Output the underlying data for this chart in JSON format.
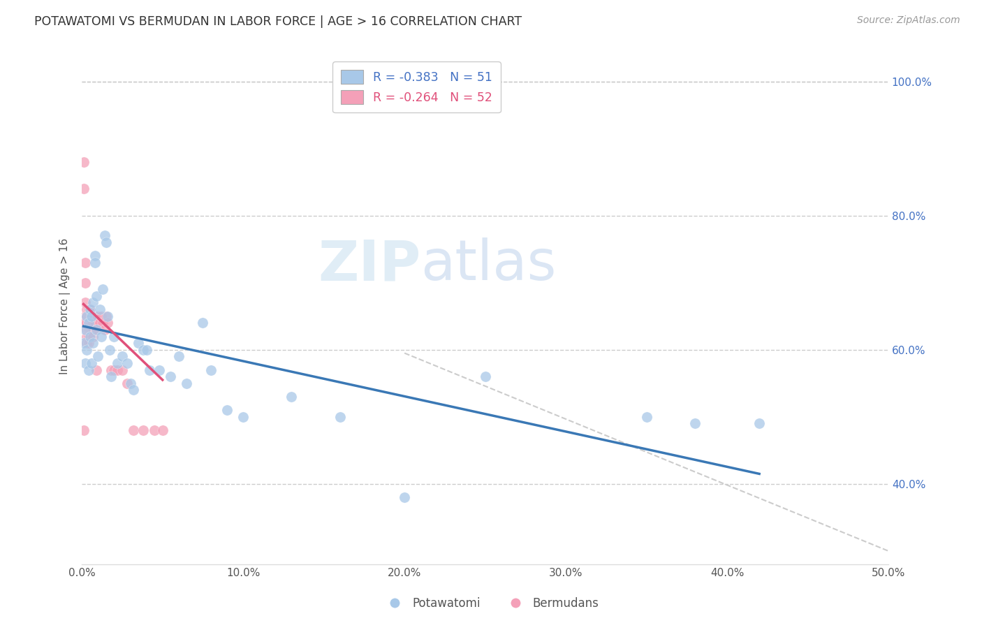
{
  "title": "POTAWATOMI VS BERMUDAN IN LABOR FORCE | AGE > 16 CORRELATION CHART",
  "source": "Source: ZipAtlas.com",
  "ylabel": "In Labor Force | Age > 16",
  "xlim": [
    0.0,
    0.5
  ],
  "ylim": [
    0.28,
    1.05
  ],
  "xtick_labels": [
    "0.0%",
    "10.0%",
    "20.0%",
    "30.0%",
    "40.0%",
    "50.0%"
  ],
  "xtick_vals": [
    0.0,
    0.1,
    0.2,
    0.3,
    0.4,
    0.5
  ],
  "ytick_labels": [
    "40.0%",
    "60.0%",
    "80.0%",
    "100.0%"
  ],
  "ytick_vals": [
    0.4,
    0.6,
    0.8,
    1.0
  ],
  "watermark": "ZIPatlas",
  "legend_blue_label": "R = -0.383   N = 51",
  "legend_pink_label": "R = -0.264   N = 52",
  "blue_color": "#a8c8e8",
  "pink_color": "#f4a0b8",
  "blue_line_color": "#3a78b5",
  "pink_line_color": "#e0507a",
  "potawatomi_x": [
    0.001,
    0.002,
    0.002,
    0.003,
    0.003,
    0.004,
    0.004,
    0.005,
    0.005,
    0.006,
    0.006,
    0.007,
    0.007,
    0.008,
    0.008,
    0.009,
    0.009,
    0.01,
    0.011,
    0.012,
    0.013,
    0.014,
    0.015,
    0.016,
    0.017,
    0.018,
    0.02,
    0.022,
    0.025,
    0.028,
    0.03,
    0.032,
    0.035,
    0.038,
    0.04,
    0.042,
    0.048,
    0.055,
    0.06,
    0.065,
    0.075,
    0.08,
    0.09,
    0.1,
    0.13,
    0.16,
    0.2,
    0.25,
    0.35,
    0.38,
    0.42
  ],
  "potawatomi_y": [
    0.61,
    0.63,
    0.58,
    0.65,
    0.6,
    0.64,
    0.57,
    0.66,
    0.62,
    0.65,
    0.58,
    0.67,
    0.61,
    0.74,
    0.73,
    0.68,
    0.63,
    0.59,
    0.66,
    0.62,
    0.69,
    0.77,
    0.76,
    0.65,
    0.6,
    0.56,
    0.62,
    0.58,
    0.59,
    0.58,
    0.55,
    0.54,
    0.61,
    0.6,
    0.6,
    0.57,
    0.57,
    0.56,
    0.59,
    0.55,
    0.64,
    0.57,
    0.51,
    0.5,
    0.53,
    0.5,
    0.38,
    0.56,
    0.5,
    0.49,
    0.49
  ],
  "bermuda_x": [
    0.001,
    0.001,
    0.001,
    0.001,
    0.002,
    0.002,
    0.002,
    0.002,
    0.002,
    0.003,
    0.003,
    0.003,
    0.003,
    0.003,
    0.003,
    0.004,
    0.004,
    0.004,
    0.004,
    0.004,
    0.004,
    0.005,
    0.005,
    0.005,
    0.005,
    0.006,
    0.006,
    0.006,
    0.007,
    0.007,
    0.007,
    0.007,
    0.008,
    0.008,
    0.009,
    0.009,
    0.01,
    0.011,
    0.012,
    0.013,
    0.014,
    0.015,
    0.016,
    0.018,
    0.02,
    0.022,
    0.025,
    0.028,
    0.032,
    0.038,
    0.045,
    0.05
  ],
  "bermuda_y": [
    0.88,
    0.84,
    0.64,
    0.48,
    0.73,
    0.7,
    0.67,
    0.65,
    0.64,
    0.66,
    0.65,
    0.64,
    0.63,
    0.62,
    0.61,
    0.66,
    0.65,
    0.64,
    0.63,
    0.62,
    0.61,
    0.66,
    0.65,
    0.64,
    0.63,
    0.65,
    0.64,
    0.63,
    0.65,
    0.64,
    0.63,
    0.62,
    0.65,
    0.64,
    0.63,
    0.57,
    0.65,
    0.64,
    0.65,
    0.64,
    0.63,
    0.65,
    0.64,
    0.57,
    0.57,
    0.57,
    0.57,
    0.55,
    0.48,
    0.48,
    0.48,
    0.48
  ],
  "blue_trendline_x": [
    0.001,
    0.42
  ],
  "blue_trendline_y": [
    0.635,
    0.415
  ],
  "pink_trendline_x": [
    0.001,
    0.05
  ],
  "pink_trendline_y": [
    0.668,
    0.555
  ],
  "dash_line_x": [
    0.2,
    0.5
  ],
  "dash_line_y": [
    0.595,
    0.3
  ]
}
